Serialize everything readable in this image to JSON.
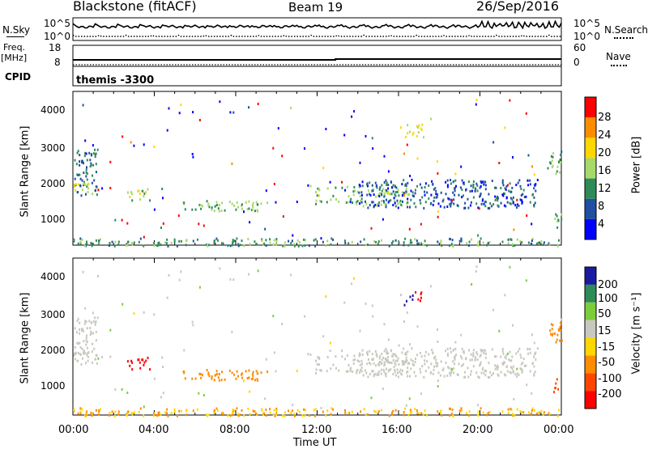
{
  "header": {
    "title": "Blackstone (fitACF)",
    "beam": "Beam 19",
    "date": "26/Sep/2016"
  },
  "noise_panel": {
    "left_label": "N.Sky",
    "left_ticks": [
      "10^5",
      "10^0"
    ],
    "right_label": "N.Search",
    "right_ticks": [
      "10^5",
      "10^0"
    ]
  },
  "freq_panel": {
    "left_label_1": "Freq.",
    "left_label_2": "[MHz]",
    "left_ticks": [
      "18",
      "8"
    ],
    "right_label": "Nave",
    "right_ticks": [
      "60",
      "0"
    ]
  },
  "cpid": {
    "label": "CPID",
    "value": "themis -3300"
  },
  "power_panel": {
    "ylabel": "Slant Range [km]",
    "yticks": [
      "4000",
      "3000",
      "2000",
      "1000"
    ],
    "colorbar_label": "Power [dB]",
    "colorbar_ticks": [
      "28",
      "24",
      "20",
      "16",
      "12",
      "8",
      "4"
    ],
    "colors": [
      "#0000ff",
      "#1f4fa0",
      "#2e8b57",
      "#a6d96a",
      "#ffd700",
      "#ff8c00",
      "#ff0000"
    ]
  },
  "velocity_panel": {
    "ylabel": "Slant Range [km]",
    "yticks": [
      "4000",
      "3000",
      "2000",
      "1000"
    ],
    "colorbar_label": "Velocity [m s⁻¹]",
    "colorbar_ticks": [
      "200",
      "100",
      "50",
      "15",
      "-15",
      "-50",
      "-100",
      "-200"
    ],
    "colors": [
      "#1a1aa0",
      "#2e8b57",
      "#7ccd3a",
      "#c8c8c0",
      "#ffd700",
      "#ff8c00",
      "#ff4500",
      "#ff0000"
    ]
  },
  "x_axis": {
    "ticks": [
      "00:00",
      "04:00",
      "08:00",
      "12:00",
      "16:00",
      "20:00",
      "00:00"
    ],
    "label": "Time UT"
  },
  "chart_data": [
    {
      "type": "heatmap",
      "title": "Power",
      "ylabel": "Slant Range [km]",
      "xlabel": "Time UT",
      "xlim": [
        0,
        24
      ],
      "ylim": [
        180,
        4500
      ],
      "colorbar": {
        "label": "Power [dB]",
        "range": [
          0,
          30
        ]
      },
      "regions": [
        {
          "t": [
            0.0,
            1.2
          ],
          "r": [
            1600,
            2900
          ],
          "v": 10
        },
        {
          "t": [
            0.0,
            1.0
          ],
          "r": [
            1650,
            1950
          ],
          "v": 18
        },
        {
          "t": [
            2.6,
            3.8
          ],
          "r": [
            1450,
            1800
          ],
          "v": 17
        },
        {
          "t": [
            5.3,
            9.6
          ],
          "r": [
            1150,
            1450
          ],
          "v": 14
        },
        {
          "t": [
            11.9,
            16.5
          ],
          "r": [
            1300,
            1850
          ],
          "v": 15
        },
        {
          "t": [
            14.0,
            22.8
          ],
          "r": [
            1250,
            2050
          ],
          "v": 8
        },
        {
          "t": [
            16.2,
            17.2
          ],
          "r": [
            3200,
            3600
          ],
          "v": 18
        },
        {
          "t": [
            23.3,
            24.0
          ],
          "r": [
            2200,
            2800
          ],
          "v": 14
        },
        {
          "t": [
            23.6,
            24.0
          ],
          "r": [
            700,
            1200
          ],
          "v": 14
        },
        {
          "t": [
            0.0,
            24.0
          ],
          "r": [
            180,
            400
          ],
          "v": 12
        }
      ]
    },
    {
      "type": "heatmap",
      "title": "Velocity",
      "ylabel": "Slant Range [km]",
      "xlabel": "Time UT",
      "xlim": [
        0,
        24
      ],
      "ylim": [
        180,
        4500
      ],
      "colorbar": {
        "label": "Velocity [m s⁻¹]",
        "range": [
          -200,
          200
        ]
      },
      "regions": [
        {
          "t": [
            0.0,
            1.2
          ],
          "r": [
            1600,
            2900
          ],
          "v": 0
        },
        {
          "t": [
            0.0,
            1.0
          ],
          "r": [
            1650,
            1950
          ],
          "v": 0
        },
        {
          "t": [
            2.6,
            3.8
          ],
          "r": [
            1450,
            1800
          ],
          "v": -200
        },
        {
          "t": [
            5.3,
            9.6
          ],
          "r": [
            1150,
            1450
          ],
          "v": -60
        },
        {
          "t": [
            11.9,
            16.5
          ],
          "r": [
            1300,
            1850
          ],
          "v": 0
        },
        {
          "t": [
            14.0,
            22.8
          ],
          "r": [
            1250,
            2050
          ],
          "v": -10
        },
        {
          "t": [
            16.2,
            16.7
          ],
          "r": [
            3200,
            3500
          ],
          "v": 180
        },
        {
          "t": [
            16.7,
            17.2
          ],
          "r": [
            3300,
            3600
          ],
          "v": -180
        },
        {
          "t": [
            23.3,
            24.0
          ],
          "r": [
            2200,
            2800
          ],
          "v": -60
        },
        {
          "t": [
            23.6,
            24.0
          ],
          "r": [
            700,
            1200
          ],
          "v": -80
        },
        {
          "t": [
            0.0,
            24.0
          ],
          "r": [
            180,
            400
          ],
          "v": -40
        }
      ]
    }
  ]
}
